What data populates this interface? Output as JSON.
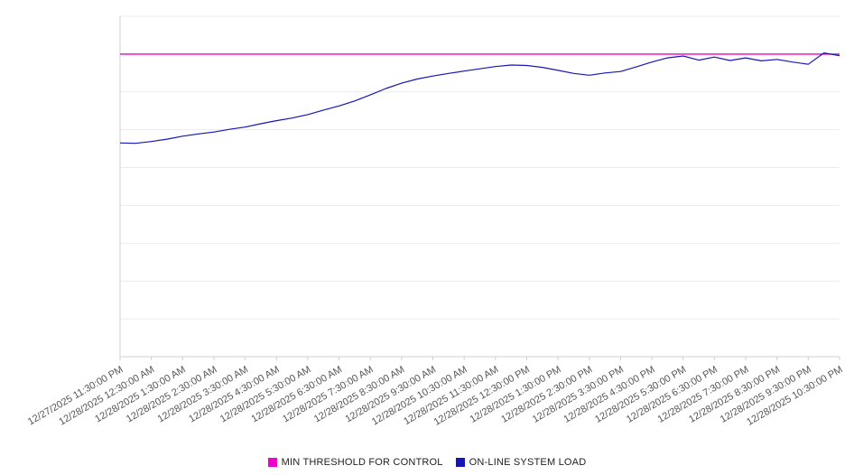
{
  "chart_data": {
    "type": "line",
    "title": "",
    "xlabel": "",
    "ylabel": "",
    "ylim": [
      0,
      90
    ],
    "grid_step": 10,
    "grid_on": true,
    "legend_position": "bottom",
    "grid_color": "#ececec",
    "axis_color": "#cfcfcf",
    "tick_color": "#555555",
    "points_per_tick": 2,
    "x_tick_labels": [
      "12/27/2025 11:30:00 PM",
      "12/28/2025 12:30:00 AM",
      "12/28/2025 1:30:00 AM",
      "12/28/2025 2:30:00 AM",
      "12/28/2025 3:30:00 AM",
      "12/28/2025 4:30:00 AM",
      "12/28/2025 5:30:00 AM",
      "12/28/2025 6:30:00 AM",
      "12/28/2025 7:30:00 AM",
      "12/28/2025 8:30:00 AM",
      "12/28/2025 9:30:00 AM",
      "12/28/2025 10:30:00 AM",
      "12/28/2025 11:30:00 AM",
      "12/28/2025 12:30:00 PM",
      "12/28/2025 1:30:00 PM",
      "12/28/2025 2:30:00 PM",
      "12/28/2025 3:30:00 PM",
      "12/28/2025 4:30:00 PM",
      "12/28/2025 5:30:00 PM",
      "12/28/2025 6:30:00 PM",
      "12/28/2025 7:30:00 PM",
      "12/28/2025 8:30:00 PM",
      "12/28/2025 9:30:00 PM",
      "12/28/2025 10:30:00 PM"
    ],
    "series": [
      {
        "name": "MIN THRESHOLD FOR CONTROL",
        "color": "#ee00cc",
        "value": 80
      },
      {
        "name": "ON-LINE SYSTEM LOAD",
        "color": "#1616b6",
        "values": [
          56.5,
          56.4,
          56.9,
          57.5,
          58.3,
          58.9,
          59.4,
          60.1,
          60.7,
          61.6,
          62.4,
          63.1,
          64.0,
          65.2,
          66.3,
          67.6,
          69.2,
          70.9,
          72.3,
          73.4,
          74.2,
          74.9,
          75.5,
          76.1,
          76.7,
          77.1,
          77.0,
          76.5,
          75.7,
          74.9,
          74.4,
          75.0,
          75.4,
          76.6,
          77.9,
          79.0,
          79.5,
          78.4,
          79.2,
          78.3,
          79.0,
          78.2,
          78.6,
          77.9,
          77.3,
          80.3,
          79.6
        ]
      }
    ]
  }
}
